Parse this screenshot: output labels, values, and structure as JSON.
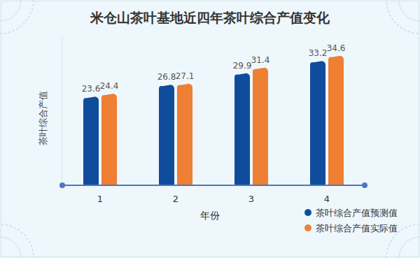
{
  "chart_data": {
    "type": "bar",
    "title": "米仓山茶叶基地近四年茶叶综合产值变化",
    "x_label": "年份",
    "y_label": "茶叶综合产值",
    "categories": [
      "1",
      "2",
      "3",
      "4"
    ],
    "series": [
      {
        "name": "茶叶综合产值预测值",
        "color": "#0f4c9c",
        "values": [
          23.6,
          26.8,
          29.9,
          33.2
        ]
      },
      {
        "name": "茶叶综合产值实际值",
        "color": "#ef7f32",
        "values": [
          24.4,
          27.1,
          31.4,
          34.6
        ]
      }
    ],
    "ylim": [
      0,
      40
    ],
    "data_labels": true,
    "tick_labels": "x",
    "legend": "lower right",
    "grid": false
  }
}
